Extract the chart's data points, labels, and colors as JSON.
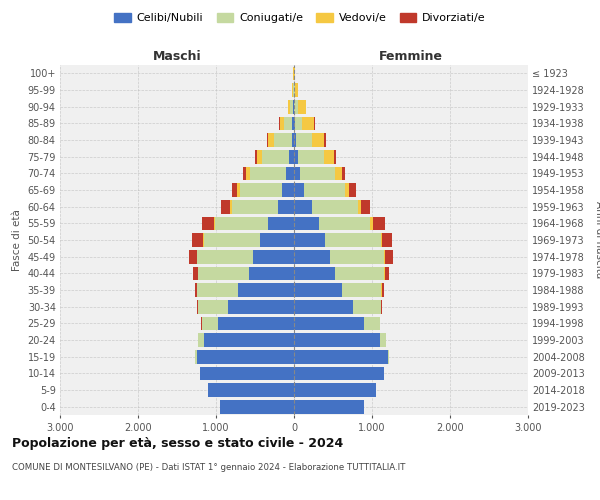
{
  "age_groups": [
    "0-4",
    "5-9",
    "10-14",
    "15-19",
    "20-24",
    "25-29",
    "30-34",
    "35-39",
    "40-44",
    "45-49",
    "50-54",
    "55-59",
    "60-64",
    "65-69",
    "70-74",
    "75-79",
    "80-84",
    "85-89",
    "90-94",
    "95-99",
    "100+"
  ],
  "birth_years": [
    "2019-2023",
    "2014-2018",
    "2009-2013",
    "2004-2008",
    "1999-2003",
    "1994-1998",
    "1989-1993",
    "1984-1988",
    "1979-1983",
    "1974-1978",
    "1969-1973",
    "1964-1968",
    "1959-1963",
    "1954-1958",
    "1949-1953",
    "1944-1948",
    "1939-1943",
    "1934-1938",
    "1929-1933",
    "1924-1928",
    "≤ 1923"
  ],
  "males": {
    "celibi": [
      950,
      1100,
      1200,
      1250,
      1150,
      980,
      850,
      720,
      580,
      520,
      430,
      330,
      200,
      150,
      100,
      60,
      30,
      20,
      10,
      5,
      3
    ],
    "coniugati": [
      2,
      3,
      5,
      15,
      80,
      200,
      380,
      520,
      650,
      720,
      730,
      680,
      600,
      540,
      460,
      350,
      230,
      110,
      45,
      12,
      3
    ],
    "vedovi": [
      0,
      0,
      0,
      0,
      1,
      2,
      3,
      4,
      5,
      8,
      12,
      18,
      25,
      35,
      55,
      70,
      75,
      55,
      22,
      8,
      2
    ],
    "divorziati": [
      0,
      0,
      0,
      0,
      2,
      5,
      12,
      28,
      60,
      100,
      130,
      150,
      110,
      70,
      45,
      25,
      12,
      6,
      3,
      1,
      0
    ]
  },
  "females": {
    "nubili": [
      900,
      1050,
      1150,
      1200,
      1100,
      900,
      750,
      620,
      520,
      460,
      400,
      320,
      230,
      130,
      80,
      50,
      20,
      10,
      5,
      3,
      2
    ],
    "coniugate": [
      2,
      3,
      5,
      15,
      80,
      200,
      360,
      500,
      640,
      700,
      710,
      660,
      590,
      520,
      440,
      340,
      210,
      90,
      40,
      10,
      2
    ],
    "vedove": [
      0,
      0,
      0,
      0,
      1,
      2,
      4,
      6,
      8,
      12,
      18,
      28,
      40,
      60,
      90,
      120,
      160,
      160,
      110,
      40,
      8
    ],
    "divorziate": [
      0,
      0,
      0,
      0,
      2,
      5,
      12,
      30,
      55,
      95,
      130,
      160,
      120,
      80,
      50,
      28,
      14,
      6,
      3,
      1,
      0
    ]
  },
  "colors": {
    "celibi": "#4472c4",
    "coniugati": "#c5d9a0",
    "vedovi": "#f5c842",
    "divorziati": "#c0392b"
  },
  "title": "Popolazione per età, sesso e stato civile - 2024",
  "subtitle": "COMUNE DI MONTESILVANO (PE) - Dati ISTAT 1° gennaio 2024 - Elaborazione TUTTITALIA.IT",
  "ylabel_left": "Fasce di età",
  "ylabel_right": "Anni di nascita",
  "xlabel_maschi": "Maschi",
  "xlabel_femmine": "Femmine",
  "legend_labels": [
    "Celibi/Nubili",
    "Coniugati/e",
    "Vedovi/e",
    "Divorziati/e"
  ],
  "xlim": 3000,
  "background_color": "#ffffff",
  "plot_bg": "#f0f0f0"
}
